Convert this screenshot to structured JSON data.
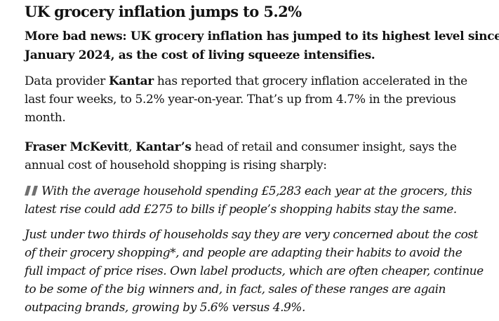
{
  "headline": "UK grocery inflation jumps to 5.2%",
  "standfirst": {
    "line1": "More bad news: UK grocery inflation has jumped to its highest level since",
    "line2": "January 2024, as the cost of living squeeze intensifies."
  },
  "paragraph1": {
    "prefix": "Data provider ",
    "bold": "Kantar",
    "line1_rest": " has reported that grocery inflation accelerated in the",
    "line2": "last four weeks, to 5.2% year-on-year. That’s up from 4.7% in the previous",
    "line3": "month."
  },
  "paragraph2": {
    "bold1": "Fraser McKevitt",
    "sep": ", ",
    "bold2": "Kantar’s",
    "line1_rest": " head of retail and consumer insight, says the",
    "line2": "annual cost of household shopping is rising sharply:"
  },
  "quote1": {
    "icon": "quote-icon",
    "line1": "With the average household spending £5,283 each year at the grocers, this",
    "line2": "latest rise could add £275 to bills if people’s shopping habits stay the same."
  },
  "quote2": {
    "line1": "Just under two thirds of households say they are very concerned about the cost",
    "line2": "of their grocery shopping*, and people are adapting their habits to avoid the",
    "line3": "full impact of price rises. Own label products, which are often cheaper, continue",
    "line4": "to be some of the big winners and, in fact, sales of these ranges are again",
    "line5": "outpacing brands, growing by 5.6% versus 4.9%."
  },
  "colors": {
    "text": "#121212",
    "quote_icon": "#707070"
  }
}
